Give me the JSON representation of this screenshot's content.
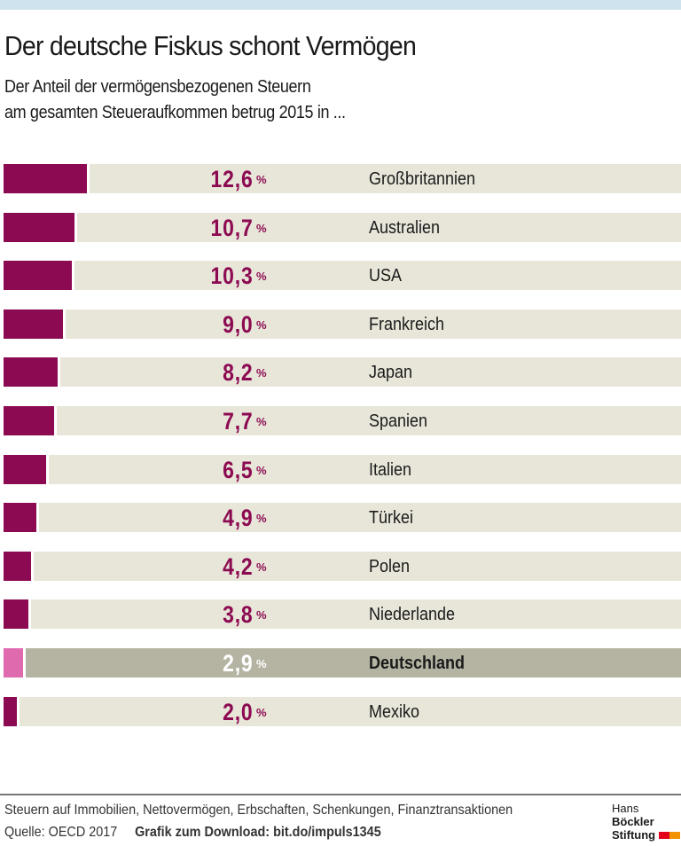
{
  "title": "Der deutsche Fiskus schont Vermögen",
  "subtitle_line1": "Der Anteil der vermögensbezogenen Steuern",
  "subtitle_line2": "am gesamten Steueraufkommen betrug 2015 in ...",
  "chart_data": {
    "type": "bar",
    "orientation": "horizontal",
    "categories": [
      "Großbritannien",
      "Australien",
      "USA",
      "Frankreich",
      "Japan",
      "Spanien",
      "Italien",
      "Türkei",
      "Polen",
      "Niederlande",
      "Deutschland",
      "Mexiko"
    ],
    "values": [
      12.6,
      10.7,
      10.3,
      9.0,
      8.2,
      7.7,
      6.5,
      4.9,
      4.2,
      3.8,
      2.9,
      2.0
    ],
    "labels": [
      "12,6",
      "10,7",
      "10,3",
      "9,0",
      "8,2",
      "7,7",
      "6,5",
      "4,9",
      "4,2",
      "3,8",
      "2,9",
      "2,0"
    ],
    "unit": "%",
    "highlight": "Deutschland",
    "colors": {
      "bar": "#8c0a51",
      "bar_highlight": "#e06aae",
      "track": "#e8e6d9",
      "track_highlight": "#b5b4a3"
    }
  },
  "footer": {
    "note": "Steuern auf Immobilien, Nettovermögen, Erbschaften, Schenkungen, Finanztransaktionen",
    "source": "Quelle: OECD 2017",
    "download": "Grafik zum Download: bit.do/impuls1345"
  },
  "logo": {
    "line1a": "Hans",
    "line1b": "Böckler",
    "line2": "Stiftung"
  }
}
